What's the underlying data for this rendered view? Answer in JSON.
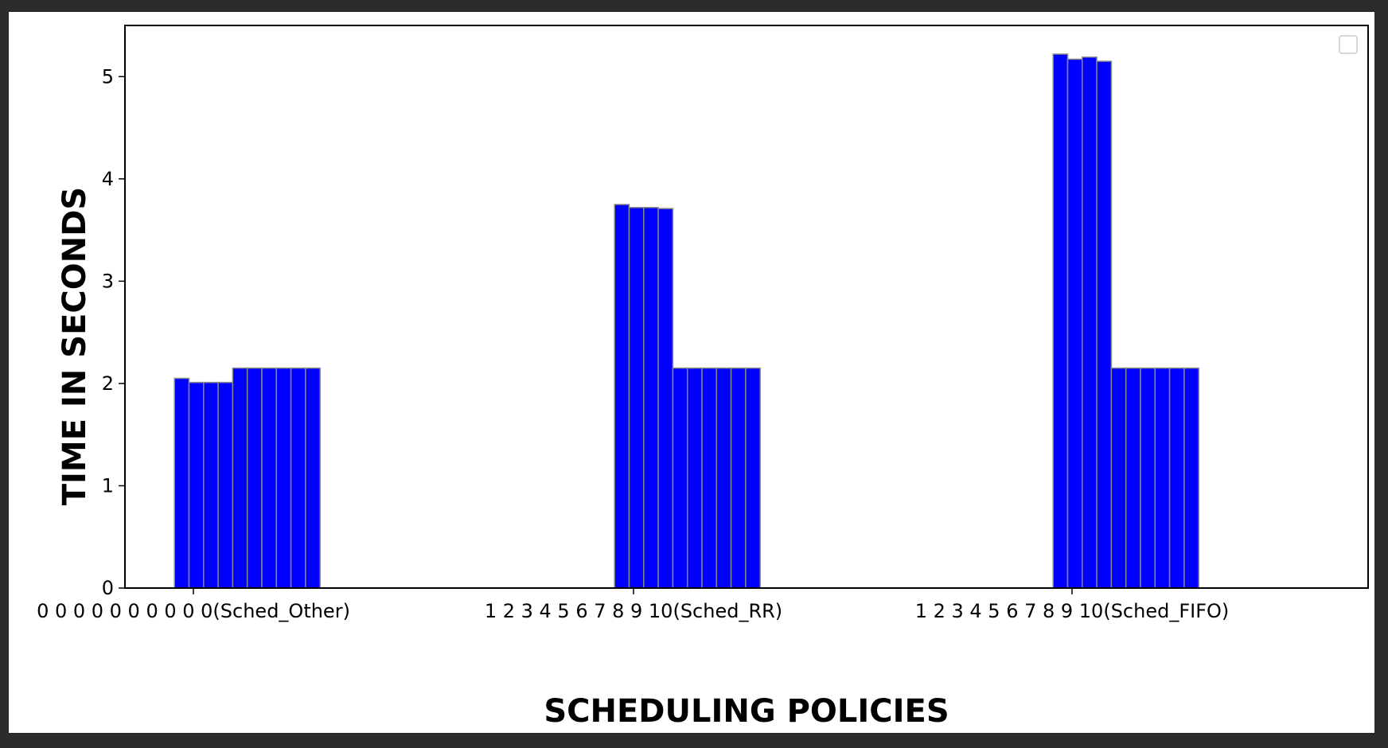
{
  "chart_data": {
    "type": "bar",
    "title": "",
    "xlabel": "SCHEDULING POLICIES",
    "ylabel": "TIME IN SECONDS",
    "ylim": [
      0,
      5.5
    ],
    "yticks": [
      0,
      1,
      2,
      3,
      4,
      5
    ],
    "grid": false,
    "legend": "top-right (empty)",
    "bar_color": "#0000ff",
    "bar_edge_color": "#888888",
    "categories": [
      "0 0 0 0 0 0 0 0 0 0(Sched_Other)",
      "1 2 3 4 5 6 7 8 9 10(Sched_RR)",
      "1 2 3 4 5 6 7 8 9 10(Sched_FIFO)"
    ],
    "series": [
      {
        "values": [
          2.05,
          3.75,
          5.22
        ]
      },
      {
        "values": [
          2.01,
          3.72,
          5.17
        ]
      },
      {
        "values": [
          2.01,
          3.72,
          5.19
        ]
      },
      {
        "values": [
          2.01,
          3.71,
          5.15
        ]
      },
      {
        "values": [
          2.15,
          2.15,
          2.15
        ]
      },
      {
        "values": [
          2.15,
          2.15,
          2.15
        ]
      },
      {
        "values": [
          2.15,
          2.15,
          2.15
        ]
      },
      {
        "values": [
          2.15,
          2.15,
          2.15
        ]
      },
      {
        "values": [
          2.15,
          2.15,
          2.15
        ]
      },
      {
        "values": [
          2.15,
          2.15,
          2.15
        ]
      }
    ]
  }
}
